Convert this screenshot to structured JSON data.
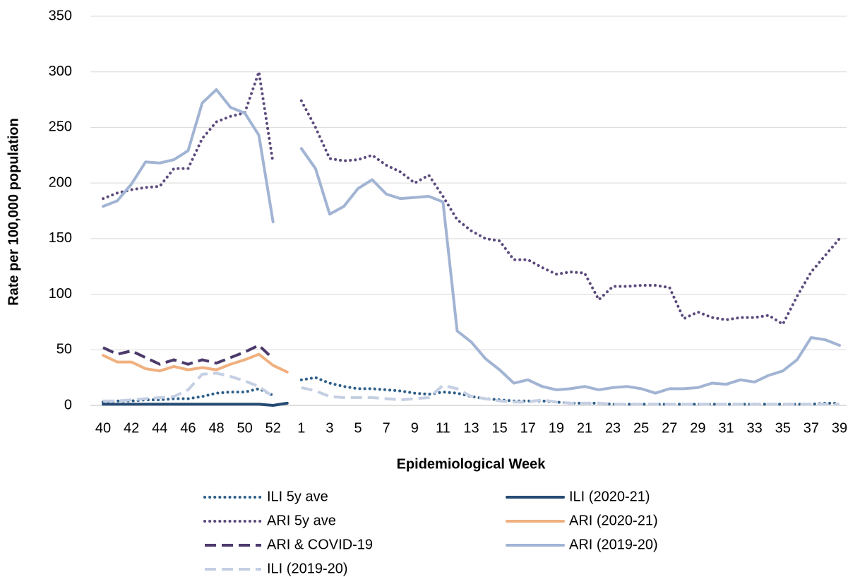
{
  "chart_data": {
    "type": "line",
    "y_label": "Rate per 100,000 population",
    "x_label": "Epidemiological Week",
    "categories": [
      "40",
      null,
      "42",
      null,
      "44",
      null,
      "46",
      null,
      "48",
      null,
      "50",
      null,
      "52",
      null,
      "1",
      null,
      "3",
      null,
      "5",
      null,
      "7",
      null,
      "9",
      null,
      "11",
      null,
      "13",
      null,
      "15",
      null,
      "17",
      null,
      "19",
      null,
      "21",
      null,
      "23",
      null,
      "25",
      null,
      "27",
      null,
      "29",
      null,
      "31",
      null,
      "33",
      null,
      "35",
      null,
      "37",
      null,
      "39"
    ],
    "ylim": [
      0,
      350
    ],
    "yticks": [
      0,
      50,
      100,
      150,
      200,
      250,
      300,
      350
    ],
    "grid": true,
    "series": [
      {
        "name": "ILI 5y ave",
        "color": "#2e5f8a",
        "style": "dotted",
        "values": [
          3,
          4,
          4,
          5,
          5,
          6,
          6,
          8,
          11,
          12,
          12,
          15,
          9,
          null,
          23,
          25,
          20,
          17,
          15,
          15,
          14,
          13,
          11,
          10,
          12,
          11,
          8,
          6,
          5,
          4,
          4,
          4,
          3,
          2,
          2,
          2,
          1,
          1,
          1,
          1,
          1,
          1,
          1,
          1,
          1,
          1,
          1,
          1,
          1,
          1,
          1,
          2,
          2
        ]
      },
      {
        "name": "ILI (2020-21)",
        "color": "#264a73",
        "style": "solid",
        "values": [
          1,
          1,
          1,
          1,
          1,
          1,
          1,
          1,
          1,
          1,
          1,
          1,
          0,
          2,
          null,
          null,
          null,
          null,
          null,
          null,
          null,
          null,
          null,
          null,
          null,
          null,
          null,
          null,
          null,
          null,
          null,
          null,
          null,
          null,
          null,
          null,
          null,
          null,
          null,
          null,
          null,
          null,
          null,
          null,
          null,
          null,
          null,
          null,
          null,
          null,
          null,
          null,
          null
        ]
      },
      {
        "name": "ARI 5y ave",
        "color": "#5c4a7d",
        "style": "dotted",
        "values": [
          186,
          191,
          194,
          196,
          197,
          213,
          213,
          240,
          255,
          260,
          263,
          300,
          218,
          null,
          274,
          250,
          222,
          220,
          221,
          225,
          216,
          210,
          200,
          207,
          188,
          167,
          157,
          150,
          148,
          131,
          131,
          124,
          118,
          120,
          119,
          95,
          107,
          107,
          108,
          108,
          106,
          78,
          84,
          79,
          77,
          79,
          79,
          81,
          73,
          98,
          120,
          135,
          150
        ]
      },
      {
        "name": "ARI (2020-21)",
        "color": "#f0b07f",
        "style": "solid",
        "values": [
          45,
          39,
          39,
          33,
          31,
          35,
          32,
          34,
          32,
          37,
          41,
          46,
          36,
          30,
          null,
          null,
          null,
          null,
          null,
          null,
          null,
          null,
          null,
          null,
          null,
          null,
          null,
          null,
          null,
          null,
          null,
          null,
          null,
          null,
          null,
          null,
          null,
          null,
          null,
          null,
          null,
          null,
          null,
          null,
          null,
          null,
          null,
          null,
          null,
          null,
          null,
          null,
          null
        ]
      },
      {
        "name": "ARI & COVID-19",
        "color": "#4b3a6b",
        "style": "dashed",
        "values": [
          52,
          46,
          49,
          43,
          37,
          41,
          37,
          41,
          38,
          43,
          48,
          54,
          42,
          null,
          null,
          null,
          null,
          null,
          null,
          null,
          null,
          null,
          null,
          null,
          null,
          null,
          null,
          null,
          null,
          null,
          null,
          null,
          null,
          null,
          null,
          null,
          null,
          null,
          null,
          null,
          null,
          null,
          null,
          null,
          null,
          null,
          null,
          null,
          null,
          null,
          null,
          null,
          null
        ]
      },
      {
        "name": "ARI (2019-20)",
        "color": "#a2b4d3",
        "style": "solid",
        "values": [
          179,
          184,
          199,
          219,
          218,
          221,
          229,
          272,
          284,
          268,
          263,
          243,
          165,
          null,
          231,
          213,
          172,
          179,
          195,
          203,
          190,
          186,
          187,
          188,
          183,
          67,
          57,
          42,
          32,
          20,
          23,
          17,
          14,
          15,
          17,
          14,
          16,
          17,
          15,
          11,
          15,
          15,
          16,
          20,
          19,
          23,
          21,
          27,
          31,
          41,
          61,
          59,
          54
        ]
      },
      {
        "name": "ILI (2019-20)",
        "color": "#c5cfe3",
        "style": "dashed",
        "values": [
          4,
          4,
          5,
          6,
          7,
          8,
          14,
          28,
          29,
          26,
          22,
          17,
          8,
          null,
          16,
          13,
          8,
          7,
          7,
          7,
          6,
          5,
          6,
          7,
          18,
          15,
          8,
          6,
          4,
          3,
          3,
          5,
          3,
          2,
          2,
          2,
          1,
          1,
          1,
          1,
          1,
          1,
          1,
          1,
          1,
          1,
          1,
          1,
          1,
          1,
          1,
          1,
          1
        ]
      }
    ]
  }
}
